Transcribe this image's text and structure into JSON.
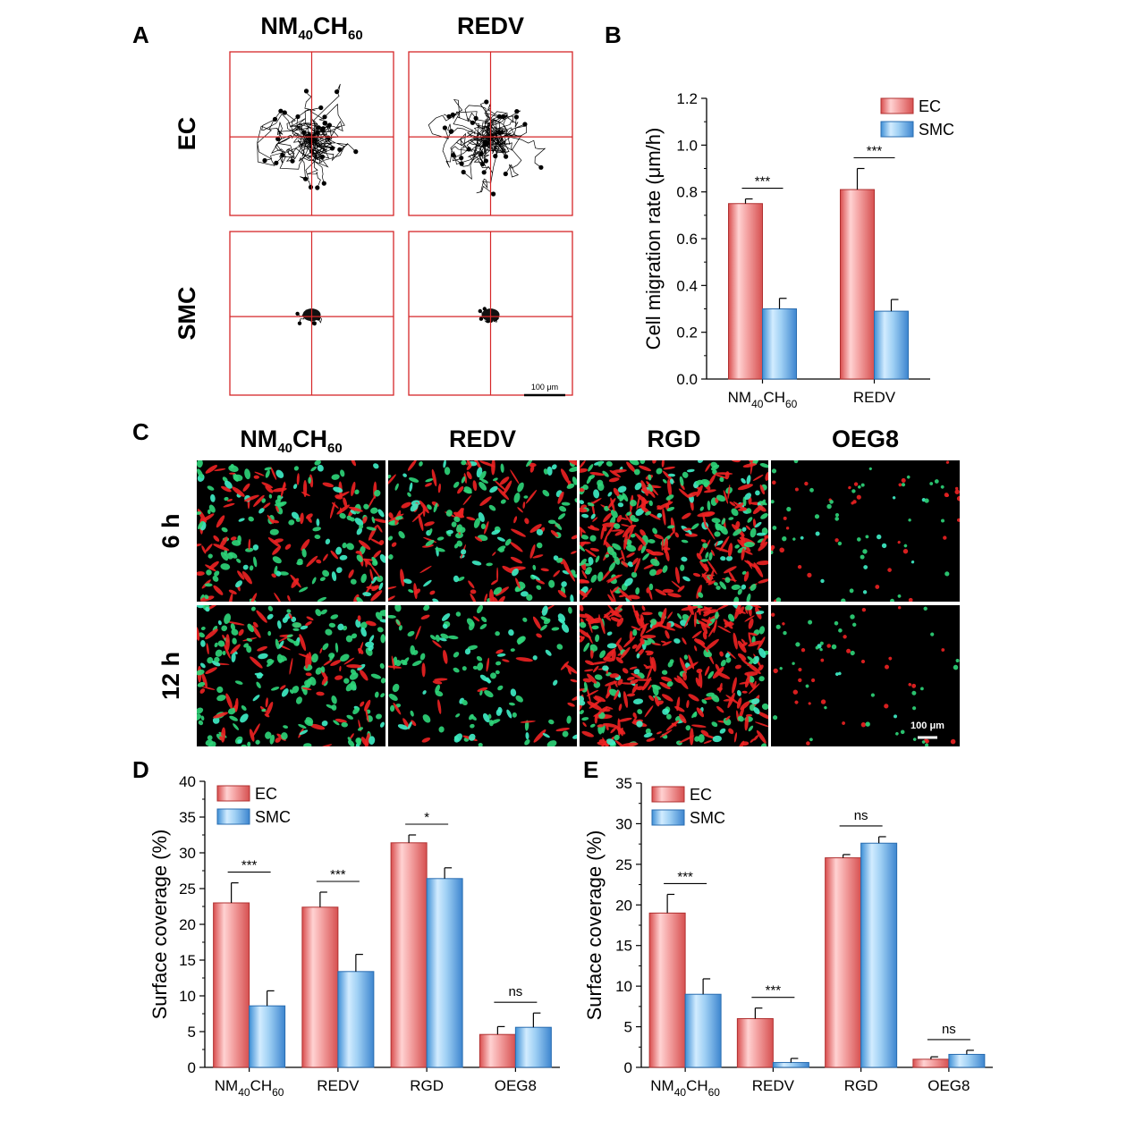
{
  "panels": {
    "A": "A",
    "B": "B",
    "C": "C",
    "D": "D",
    "E": "E"
  },
  "panel_a": {
    "col_headers": [
      {
        "main": "NM",
        "sub1": "40",
        "mid": "CH",
        "sub2": "60"
      },
      {
        "main": "REDV",
        "sub1": "",
        "mid": "",
        "sub2": ""
      }
    ],
    "row_headers": [
      "EC",
      "SMC"
    ],
    "scale_bar": "100 μm",
    "colors": {
      "frame": "#d62728",
      "track": "#000000"
    }
  },
  "panel_c": {
    "col_headers": [
      {
        "main": "NM",
        "sub1": "40",
        "mid": "CH",
        "sub2": "60"
      },
      {
        "main": "REDV",
        "sub1": "",
        "mid": "",
        "sub2": ""
      },
      {
        "main": "RGD",
        "sub1": "",
        "mid": "",
        "sub2": ""
      },
      {
        "main": "OEG8",
        "sub1": "",
        "mid": "",
        "sub2": ""
      }
    ],
    "row_headers": [
      "6 h",
      "12 h"
    ],
    "density": [
      [
        0.55,
        0.5,
        1.0,
        0.12
      ],
      [
        0.6,
        0.3,
        1.0,
        0.08
      ]
    ],
    "red_ratio": [
      [
        0.45,
        0.45,
        0.55,
        0.45
      ],
      [
        0.35,
        0.3,
        0.65,
        0.5
      ]
    ],
    "scale_bar": "100 μm",
    "colors": {
      "green": "#2fd67a",
      "red": "#ee2222",
      "cyan": "#3ff0c8"
    }
  },
  "chart_data": [
    {
      "panel": "B",
      "type": "bar",
      "title": "",
      "categories": [
        {
          "main": "NM",
          "sub1": "40",
          "mid": "CH",
          "sub2": "60"
        },
        {
          "main": "REDV",
          "sub1": "",
          "mid": "",
          "sub2": ""
        }
      ],
      "series": [
        {
          "name": "EC",
          "values": [
            0.75,
            0.81
          ],
          "errors": [
            0.02,
            0.09
          ],
          "color": "#e87a7a"
        },
        {
          "name": "SMC",
          "values": [
            0.3,
            0.29
          ],
          "errors": [
            0.045,
            0.05
          ],
          "color": "#7ab8ea"
        }
      ],
      "xlabel": "",
      "ylabel": "Cell migration rate (μm/h)",
      "ylim": [
        0,
        1.2
      ],
      "yticks": [
        "0.0",
        "0.2",
        "0.4",
        "0.6",
        "0.8",
        "1.0",
        "1.2"
      ],
      "significance": [
        "***",
        "***"
      ],
      "legend_position": "top-right",
      "grid": false
    },
    {
      "panel": "D",
      "type": "bar",
      "title": "",
      "categories": [
        {
          "main": "NM",
          "sub1": "40",
          "mid": "CH",
          "sub2": "60"
        },
        {
          "main": "REDV",
          "sub1": "",
          "mid": "",
          "sub2": ""
        },
        {
          "main": "RGD",
          "sub1": "",
          "mid": "",
          "sub2": ""
        },
        {
          "main": "OEG8",
          "sub1": "",
          "mid": "",
          "sub2": ""
        }
      ],
      "series": [
        {
          "name": "EC",
          "values": [
            23.0,
            22.4,
            31.4,
            4.6
          ],
          "errors": [
            2.8,
            2.1,
            1.1,
            1.1
          ],
          "color": "#e87a7a"
        },
        {
          "name": "SMC",
          "values": [
            8.6,
            13.4,
            26.4,
            5.6
          ],
          "errors": [
            2.1,
            2.4,
            1.5,
            2.0
          ],
          "color": "#7ab8ea"
        }
      ],
      "xlabel": "",
      "ylabel": "Surface coverage (%)",
      "ylim": [
        0,
        40
      ],
      "yticks": [
        "0",
        "5",
        "10",
        "15",
        "20",
        "25",
        "30",
        "35",
        "40"
      ],
      "significance": [
        "***",
        "***",
        "*",
        "ns"
      ],
      "legend_position": "top-left",
      "grid": false
    },
    {
      "panel": "E",
      "type": "bar",
      "title": "",
      "categories": [
        {
          "main": "NM",
          "sub1": "40",
          "mid": "CH",
          "sub2": "60"
        },
        {
          "main": "REDV",
          "sub1": "",
          "mid": "",
          "sub2": ""
        },
        {
          "main": "RGD",
          "sub1": "",
          "mid": "",
          "sub2": ""
        },
        {
          "main": "OEG8",
          "sub1": "",
          "mid": "",
          "sub2": ""
        }
      ],
      "series": [
        {
          "name": "EC",
          "values": [
            19.0,
            6.0,
            25.8,
            1.0
          ],
          "errors": [
            2.3,
            1.3,
            0.4,
            0.3
          ],
          "color": "#e87a7a"
        },
        {
          "name": "SMC",
          "values": [
            9.0,
            0.6,
            27.6,
            1.6
          ],
          "errors": [
            1.9,
            0.5,
            0.8,
            0.5
          ],
          "color": "#7ab8ea"
        }
      ],
      "xlabel": "",
      "ylabel": "Surface coverage (%)",
      "ylim": [
        0,
        35
      ],
      "yticks": [
        "0",
        "5",
        "10",
        "15",
        "20",
        "25",
        "30",
        "35"
      ],
      "significance": [
        "***",
        "***",
        "ns",
        "ns"
      ],
      "legend_position": "top-left",
      "grid": false
    }
  ]
}
